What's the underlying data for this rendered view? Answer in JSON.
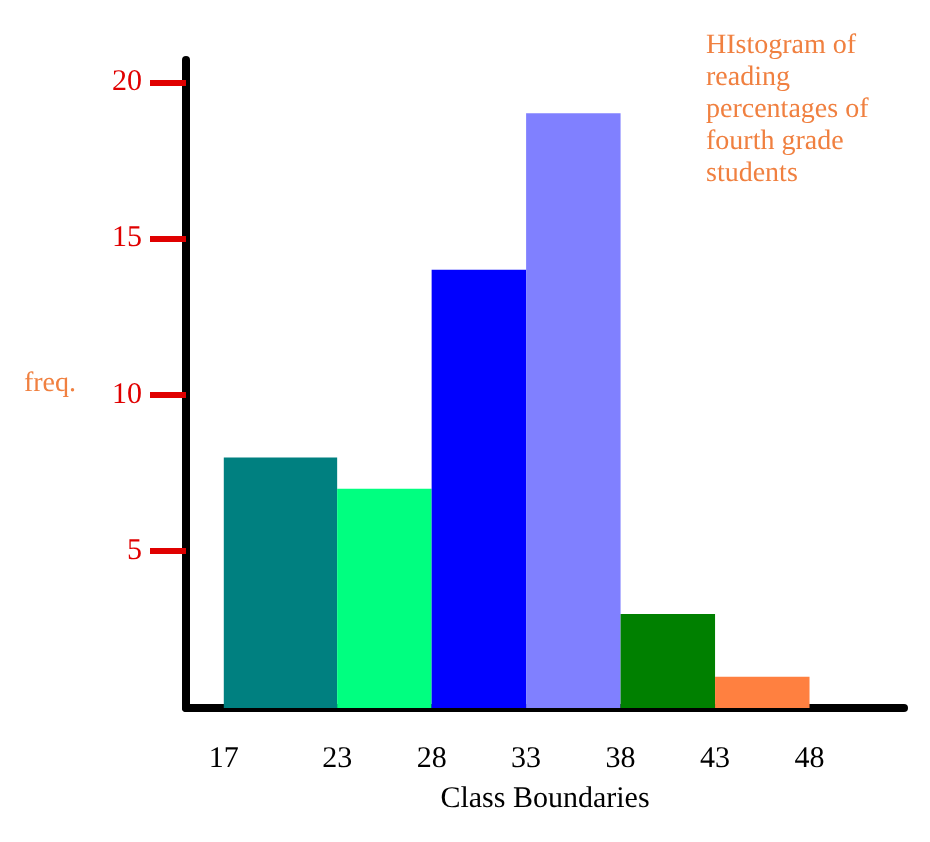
{
  "chart_data": {
    "type": "histogram",
    "title": "HIstogram of reading percentages of fourth grade students",
    "xlabel": "Class Boundaries",
    "ylabel": "freq.",
    "bins": [
      17,
      23,
      28,
      33,
      38,
      43,
      48
    ],
    "values": [
      8,
      7,
      14,
      19,
      3,
      1
    ],
    "colors": [
      "#008080",
      "#00ff80",
      "#0000ff",
      "#8080ff",
      "#008000",
      "#ff8040"
    ],
    "xlim": [
      15,
      53
    ],
    "xticks": [
      17,
      23,
      28,
      33,
      38,
      43,
      48
    ],
    "ylim": [
      0,
      20.7
    ],
    "yticks": [
      5,
      10,
      15,
      20
    ],
    "grid": false
  }
}
